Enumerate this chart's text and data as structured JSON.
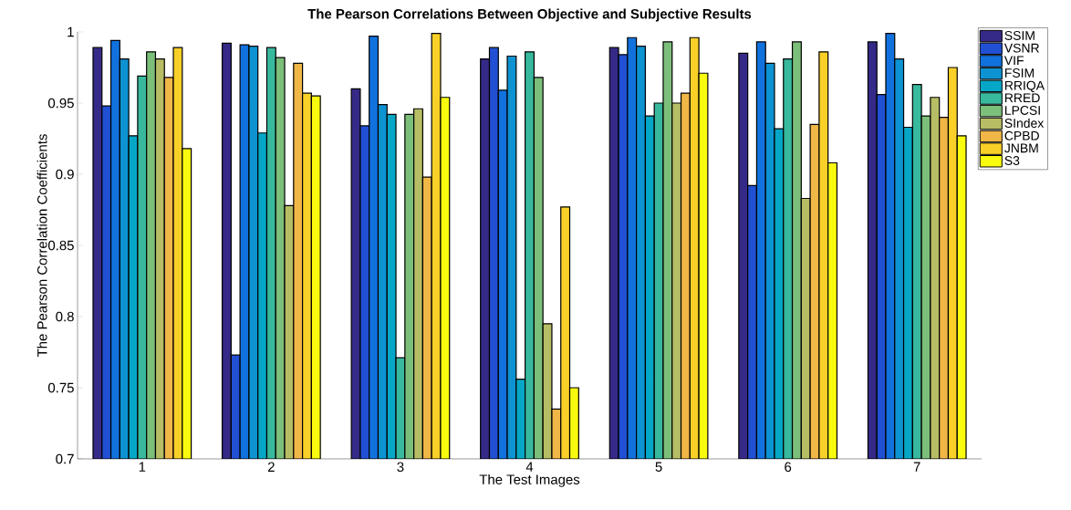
{
  "chart_data": {
    "type": "bar",
    "title": "The Pearson Correlations Between Objective and Subjective Results",
    "xlabel": "The Test Images",
    "ylabel": "The Pearson Correlation Coefficients",
    "categories": [
      "1",
      "2",
      "3",
      "4",
      "5",
      "6",
      "7"
    ],
    "ylim": [
      0.7,
      1
    ],
    "yticks": [
      0.7,
      0.75,
      0.8,
      0.85,
      0.9,
      0.95,
      1
    ],
    "legend": "top right",
    "series": [
      {
        "name": "SSIM",
        "color": "#352a87",
        "values": [
          0.989,
          0.992,
          0.96,
          0.981,
          0.989,
          0.985,
          0.993
        ]
      },
      {
        "name": "VSNR",
        "color": "#2150d4",
        "values": [
          0.948,
          0.773,
          0.934,
          0.989,
          0.984,
          0.892,
          0.956
        ]
      },
      {
        "name": "VIF",
        "color": "#1172de",
        "values": [
          0.994,
          0.991,
          0.997,
          0.959,
          0.996,
          0.993,
          0.999
        ]
      },
      {
        "name": "FSIM",
        "color": "#0d93d2",
        "values": [
          0.981,
          0.99,
          0.949,
          0.983,
          0.99,
          0.978,
          0.981
        ]
      },
      {
        "name": "RRIQA",
        "color": "#06a7c6",
        "values": [
          0.927,
          0.929,
          0.942,
          0.756,
          0.941,
          0.932,
          0.933
        ]
      },
      {
        "name": "RRED",
        "color": "#38b99e",
        "values": [
          0.969,
          0.989,
          0.771,
          0.986,
          0.95,
          0.981,
          0.963
        ]
      },
      {
        "name": "LPCSI",
        "color": "#7cbf7b",
        "values": [
          0.986,
          0.982,
          0.942,
          0.968,
          0.993,
          0.993,
          0.941
        ]
      },
      {
        "name": "SIndex",
        "color": "#b7bd64",
        "values": [
          0.981,
          0.878,
          0.946,
          0.795,
          0.95,
          0.883,
          0.954
        ]
      },
      {
        "name": "CPBD",
        "color": "#f0b646",
        "values": [
          0.968,
          0.978,
          0.898,
          0.735,
          0.957,
          0.935,
          0.94
        ]
      },
      {
        "name": "JNBM",
        "color": "#f8d028",
        "values": [
          0.989,
          0.957,
          0.999,
          0.877,
          0.996,
          0.986,
          0.975
        ]
      },
      {
        "name": "S3",
        "color": "#f9fb0e",
        "values": [
          0.918,
          0.955,
          0.954,
          0.75,
          0.971,
          0.908,
          0.927
        ]
      }
    ]
  }
}
